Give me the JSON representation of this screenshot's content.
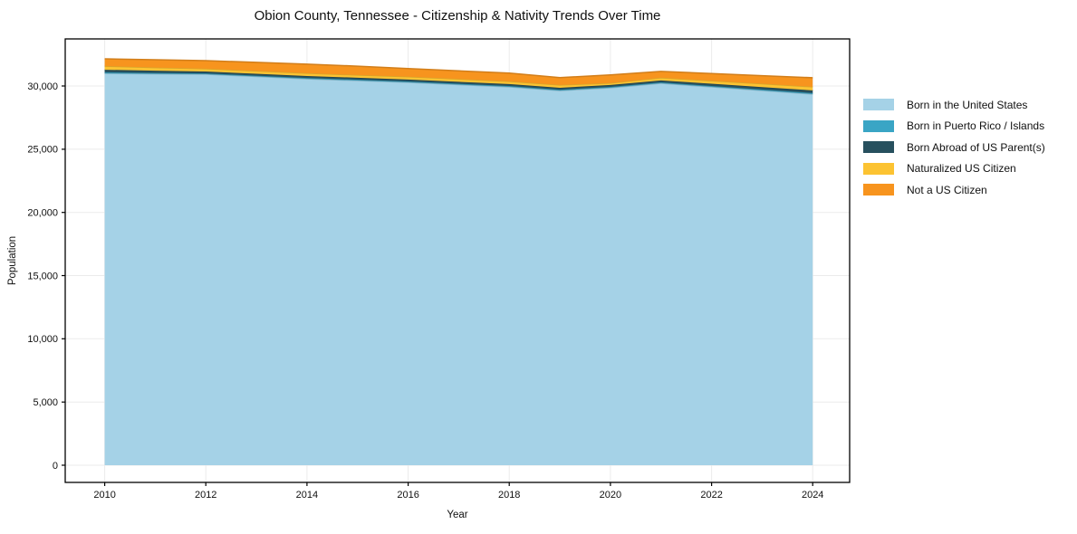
{
  "figure": {
    "title": "Obion County, Tennessee - Citizenship & Nativity Trends Over Time",
    "xlabel": "Year",
    "ylabel": "Population"
  },
  "chart_data": {
    "type": "area",
    "stacked": true,
    "title": "Obion County, Tennessee - Citizenship & Nativity Trends Over Time",
    "xlabel": "Year",
    "ylabel": "Population",
    "x": [
      2010,
      2011,
      2012,
      2013,
      2014,
      2015,
      2016,
      2017,
      2018,
      2019,
      2020,
      2021,
      2022,
      2023,
      2024
    ],
    "series": [
      {
        "name": "Born in the United States",
        "color": "#a5d2e7",
        "values": [
          31000,
          30960,
          30930,
          30750,
          30570,
          30430,
          30290,
          30110,
          29930,
          29640,
          29860,
          30215,
          29930,
          29645,
          29360
        ]
      },
      {
        "name": "Born in Puerto Rico / Islands",
        "color": "#3aa5c5",
        "values": [
          80,
          75,
          70,
          70,
          70,
          70,
          70,
          70,
          70,
          70,
          70,
          70,
          70,
          75,
          80
        ]
      },
      {
        "name": "Born Abroad of US Parent(s)",
        "color": "#27505e",
        "values": [
          200,
          175,
          150,
          150,
          150,
          150,
          150,
          150,
          150,
          150,
          150,
          150,
          180,
          195,
          210
        ]
      },
      {
        "name": "Naturalized US Citizen",
        "color": "#fcc332",
        "values": [
          290,
          255,
          220,
          220,
          220,
          220,
          220,
          220,
          220,
          220,
          150,
          220,
          240,
          265,
          290
        ]
      },
      {
        "name": "Not a US Citizen",
        "color": "#f7941e",
        "values": [
          580,
          610,
          640,
          680,
          720,
          700,
          650,
          650,
          650,
          580,
          650,
          500,
          570,
          640,
          715
        ]
      }
    ],
    "x_ticks": [
      2010,
      2012,
      2014,
      2016,
      2018,
      2020,
      2022,
      2024
    ],
    "x_tick_labels": [
      "2010",
      "2012",
      "2014",
      "2016",
      "2018",
      "2020",
      "2022",
      "2024"
    ],
    "y_ticks": [
      0,
      5000,
      10000,
      15000,
      20000,
      25000,
      30000
    ],
    "y_tick_labels": [
      "0",
      "5,000",
      "10,000",
      "15,000",
      "20,000",
      "25,000",
      "30,000"
    ],
    "xlim": [
      2009.22,
      2024.73
    ],
    "ylim": [
      -1360,
      33725
    ],
    "grid": true,
    "grid_color": "#ebebeb",
    "spine_color": "#000000",
    "legend_position": "outside-right"
  }
}
